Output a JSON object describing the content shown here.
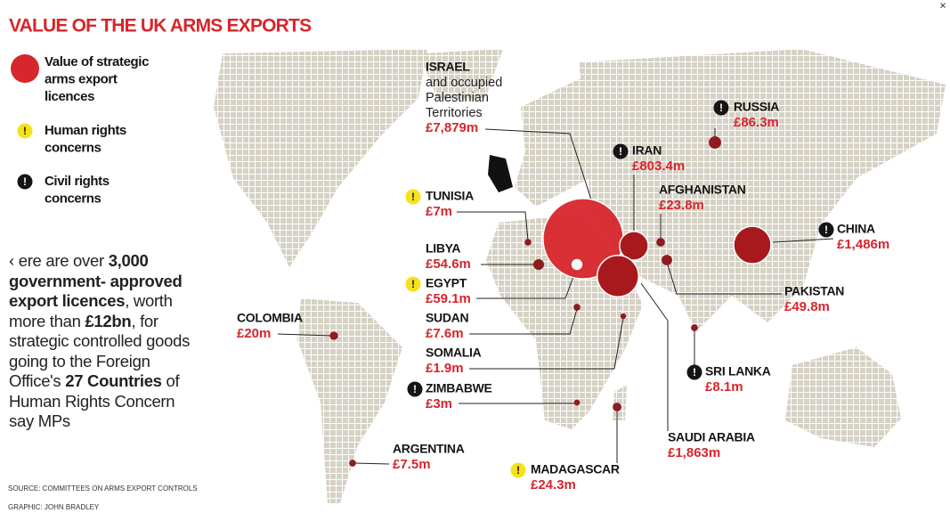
{
  "header": {
    "title": "VALUE OF THE UK ARMS EXPORTS",
    "close": "×"
  },
  "legend": [
    {
      "lines": [
        "Value of strategic",
        "arms export",
        "licences"
      ]
    },
    {
      "lines": [
        "Human rights",
        "concerns"
      ]
    },
    {
      "lines": [
        "Civil rights",
        "concerns"
      ]
    }
  ],
  "icon": "!",
  "intro": {
    "runs": [
      {
        "text": "‹ ere are over ",
        "bold": false
      },
      {
        "text": "3,000 government- approved export licences",
        "bold": true
      },
      {
        "text": ", worth more than ",
        "bold": false
      },
      {
        "text": "£12bn",
        "bold": true
      },
      {
        "text": ", for strategic controlled goods going to the Foreign Office's ",
        "bold": false
      },
      {
        "text": "27 Countries",
        "bold": true
      },
      {
        "text": " of Human Rights Concern say MPs",
        "bold": false
      }
    ]
  },
  "countries": [
    {
      "name": "ISRAEL",
      "note": [
        "and occupied",
        "Palestinian",
        "Territories"
      ],
      "amount": "£7,879m",
      "value": 7879
    },
    {
      "name": "RUSSIA",
      "amount": "£86.3m",
      "value": 86.3
    },
    {
      "name": "IRAN",
      "amount": "£803.4m",
      "value": 803.4
    },
    {
      "name": "AFGHANISTAN",
      "amount": "£23.8m",
      "value": 23.8
    },
    {
      "name": "CHINA",
      "amount": "£1,486m",
      "value": 1486
    },
    {
      "name": "TUNISIA",
      "amount": "£7m",
      "value": 7
    },
    {
      "name": "LIBYA",
      "amount": "£54.6m",
      "value": 54.6
    },
    {
      "name": "EGYPT",
      "amount": "£59.1m",
      "value": 59.1
    },
    {
      "name": "PAKISTAN",
      "amount": "£49.8m",
      "value": 49.8
    },
    {
      "name": "SUDAN",
      "amount": "£7.6m",
      "value": 7.6
    },
    {
      "name": "COLOMBIA",
      "amount": "£20m",
      "value": 20
    },
    {
      "name": "SOMALIA",
      "amount": "£1.9m",
      "value": 1.9
    },
    {
      "name": "SRI LANKA",
      "amount": "£8.1m",
      "value": 8.1
    },
    {
      "name": "SAUDI ARABIA",
      "amount": "£1,863m",
      "value": 1863
    },
    {
      "name": "ZIMBABWE",
      "amount": "£3m",
      "value": 3
    },
    {
      "name": "ARGENTINA",
      "amount": "£7.5m",
      "value": 7.5
    },
    {
      "name": "MADAGASCAR",
      "amount": "£24.3m",
      "value": 24.3
    }
  ],
  "footer": {
    "source": "SOURCE: COMMITTEES ON ARMS EXPORT CONTROLS",
    "credit": "GRAPHIC: JOHN BRADLEY"
  }
}
